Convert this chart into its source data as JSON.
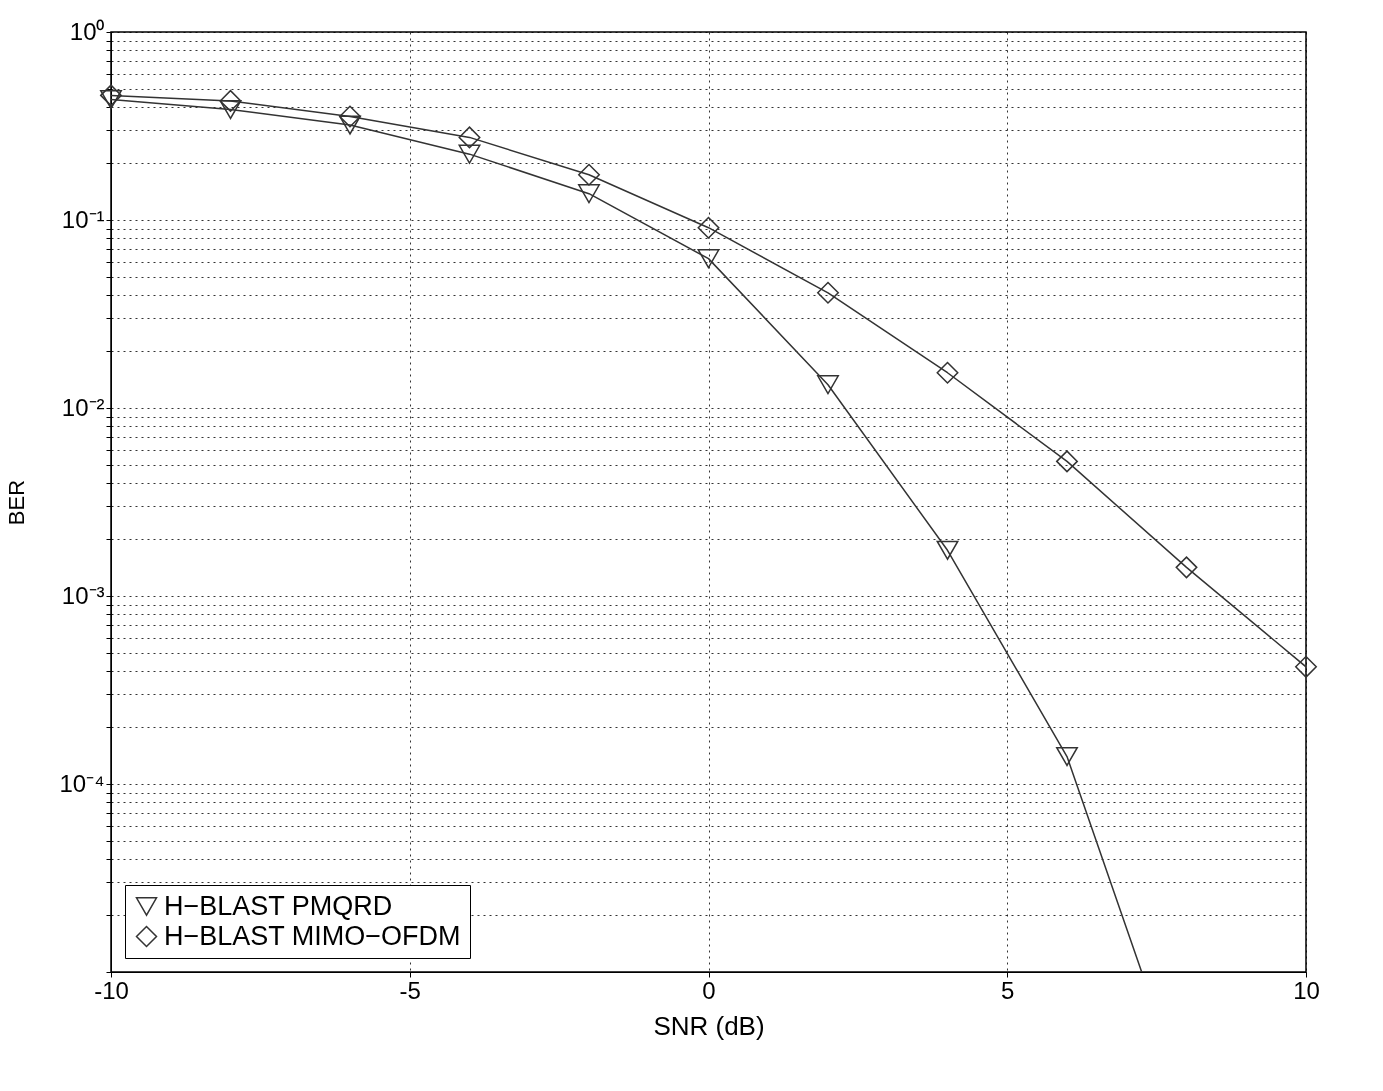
{
  "chart_data": {
    "type": "line",
    "xlabel": "SNR   (dB)",
    "ylabel": "BER",
    "log": "y",
    "grid": true,
    "legend": "bottom left",
    "line_style": "solid",
    "xlim": [
      -10,
      10
    ],
    "xticks": [
      -10,
      -5,
      0,
      5,
      10
    ],
    "ylim": [
      1e-05,
      1
    ],
    "yticks": [
      {
        "value": 1e-05,
        "label": null
      },
      {
        "value": 2e-05,
        "label": null
      },
      {
        "value": 3e-05,
        "label": null
      },
      {
        "value": 4e-05,
        "label": null
      },
      {
        "value": 5e-05,
        "label": null
      },
      {
        "value": 6e-05,
        "label": null
      },
      {
        "value": 7e-05,
        "label": null
      },
      {
        "value": 8e-05,
        "label": null
      },
      {
        "value": 9e-05,
        "label": null
      },
      {
        "value": 0.0001,
        "label": "10⁻⁴"
      },
      {
        "value": 0.0002,
        "label": null
      },
      {
        "value": 0.0003,
        "label": null
      },
      {
        "value": 0.0004,
        "label": null
      },
      {
        "value": 0.0005,
        "label": null
      },
      {
        "value": 0.0006,
        "label": null
      },
      {
        "value": 0.0007,
        "label": null
      },
      {
        "value": 0.0008,
        "label": null
      },
      {
        "value": 0.0009,
        "label": null
      },
      {
        "value": 0.001,
        "label": "10⁻³"
      },
      {
        "value": 0.002,
        "label": null
      },
      {
        "value": 0.003,
        "label": null
      },
      {
        "value": 0.004,
        "label": null
      },
      {
        "value": 0.005,
        "label": null
      },
      {
        "value": 0.006,
        "label": null
      },
      {
        "value": 0.007,
        "label": null
      },
      {
        "value": 0.008,
        "label": null
      },
      {
        "value": 0.009,
        "label": null
      },
      {
        "value": 0.01,
        "label": "10⁻²"
      },
      {
        "value": 0.02,
        "label": null
      },
      {
        "value": 0.03,
        "label": null
      },
      {
        "value": 0.04,
        "label": null
      },
      {
        "value": 0.05,
        "label": null
      },
      {
        "value": 0.06,
        "label": null
      },
      {
        "value": 0.07,
        "label": null
      },
      {
        "value": 0.08,
        "label": null
      },
      {
        "value": 0.09,
        "label": null
      },
      {
        "value": 0.1,
        "label": "10⁻¹"
      },
      {
        "value": 0.2,
        "label": null
      },
      {
        "value": 0.3,
        "label": null
      },
      {
        "value": 0.4,
        "label": null
      },
      {
        "value": 0.5,
        "label": null
      },
      {
        "value": 0.6,
        "label": null
      },
      {
        "value": 0.7,
        "label": null
      },
      {
        "value": 0.8,
        "label": null
      },
      {
        "value": 0.9,
        "label": null
      },
      {
        "value": 1,
        "label": "10⁰"
      }
    ],
    "series": [
      {
        "name": "H−BLAST PMQRD",
        "color": "#333333",
        "marker": "triangle",
        "x": [
          -10,
          -8,
          -6,
          -4,
          -2,
          0,
          2,
          4,
          6,
          7.25
        ],
        "values": [
          0.437,
          0.387,
          0.32,
          0.224,
          0.138,
          0.0623,
          0.0133,
          0.00175,
          0.00014,
          1e-05
        ]
      },
      {
        "name": "H−BLAST MIMO−OFDM",
        "color": "#333333",
        "marker": "diamond",
        "x": [
          -10,
          -8,
          -6,
          -4,
          -2,
          0,
          2,
          4,
          6,
          8,
          10
        ],
        "values": [
          0.46,
          0.43,
          0.355,
          0.275,
          0.174,
          0.091,
          0.041,
          0.0154,
          0.0052,
          0.00142,
          0.00042
        ]
      }
    ]
  }
}
